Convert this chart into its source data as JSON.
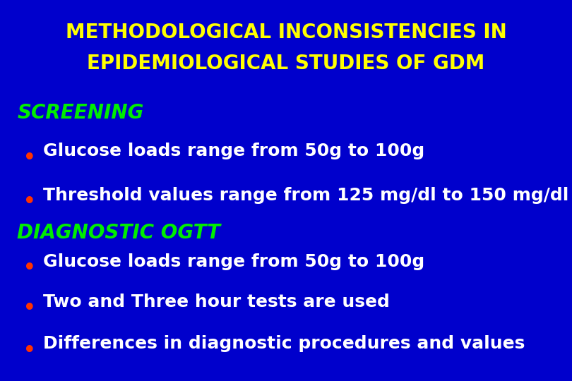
{
  "background_color": "#0000CC",
  "title_line1": "METHODOLOGICAL INCONSISTENCIES IN",
  "title_line2": "EPIDEMIOLOGICAL STUDIES OF GDM",
  "title_color": "#FFFF00",
  "title_fontsize": 20,
  "section1_label": "SCREENING",
  "section1_color": "#00EE00",
  "section1_fontsize": 20,
  "section2_label": "DIAGNOSTIC OGTT",
  "section2_color": "#00EE00",
  "section2_fontsize": 20,
  "bullet_color": "#FF3300",
  "bullet_text_color": "#FFFFFF",
  "bullet_fontsize": 18,
  "bullets_screening": [
    "Glucose loads range from 50g to 100g",
    "Threshold values range from 125 mg/dl to 150 mg/dl"
  ],
  "bullets_diagnostic": [
    "Glucose loads range from 50g to 100g",
    "Two and Three hour tests are used",
    "Differences in diagnostic procedures and values"
  ],
  "fig_width": 8.1,
  "fig_height": 5.4,
  "dpi": 100
}
